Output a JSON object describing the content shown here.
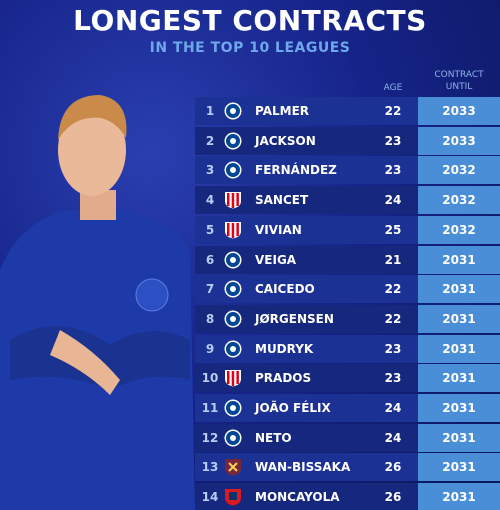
{
  "header": {
    "title": "LONGEST CONTRACTS",
    "subtitle": "IN THE TOP 10 LEAGUES"
  },
  "table": {
    "columns": [
      "AGE",
      "CONTRACT UNTIL"
    ],
    "rows": [
      [
        "1",
        "PALMER",
        "22",
        "2033"
      ],
      [
        "2",
        "JACKSON",
        "23",
        "2033"
      ],
      [
        "3",
        "FERNÁNDEZ",
        "23",
        "2032"
      ],
      [
        "4",
        "SANCET",
        "24",
        "2032"
      ],
      [
        "5",
        "VIVIAN",
        "25",
        "2032"
      ],
      [
        "6",
        "VEIGA",
        "21",
        "2031"
      ],
      [
        "7",
        "CAICEDO",
        "22",
        "2031"
      ],
      [
        "8",
        "JØRGENSEN",
        "22",
        "2031"
      ],
      [
        "9",
        "MUDRYK",
        "23",
        "2031"
      ],
      [
        "10",
        "PRADOS",
        "23",
        "2031"
      ],
      [
        "11",
        "JOÃO FÉLIX",
        "24",
        "2031"
      ],
      [
        "12",
        "NETO",
        "24",
        "2031"
      ],
      [
        "13",
        "WAN-BISSAKA",
        "26",
        "2031"
      ],
      [
        "14",
        "MONCAYOLA",
        "26",
        "2031"
      ]
    ]
  }
}
